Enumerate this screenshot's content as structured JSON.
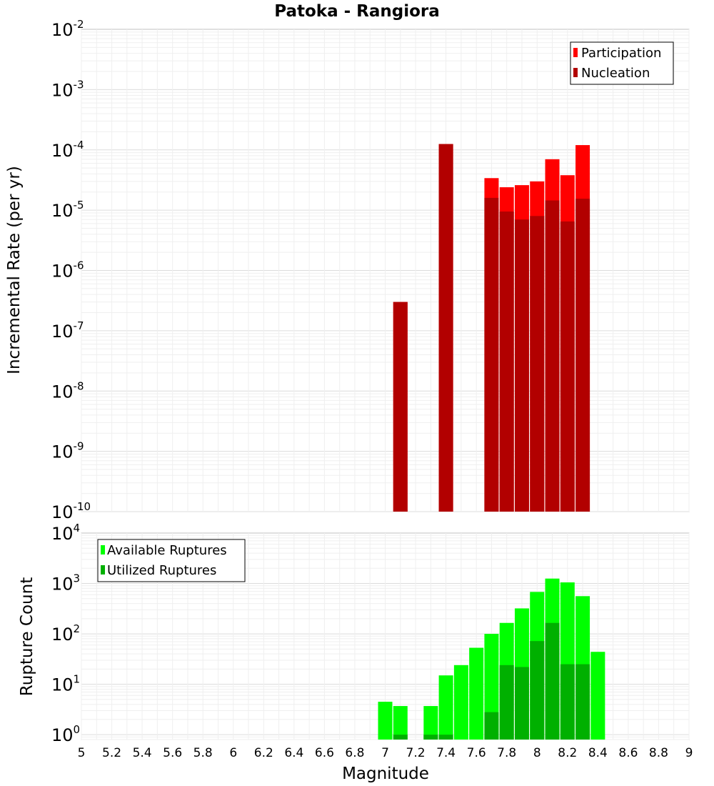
{
  "chart_data": [
    {
      "type": "bar",
      "title": "Patoka - Rangiora",
      "xlabel": "Magnitude",
      "ylabel": "Incremental Rate (per yr)",
      "yscale": "log",
      "ylim": [
        1e-10,
        0.01
      ],
      "xlim": [
        5,
        9
      ],
      "grid": true,
      "legend_position": "top-right",
      "y_ticks": [
        {
          "base": "10",
          "exp": "-10"
        },
        {
          "base": "10",
          "exp": "-9"
        },
        {
          "base": "10",
          "exp": "-8"
        },
        {
          "base": "10",
          "exp": "-7"
        },
        {
          "base": "10",
          "exp": "-6"
        },
        {
          "base": "10",
          "exp": "-5"
        },
        {
          "base": "10",
          "exp": "-4"
        },
        {
          "base": "10",
          "exp": "-3"
        },
        {
          "base": "10",
          "exp": "-2"
        }
      ],
      "x": [
        7.1,
        7.4,
        7.7,
        7.8,
        7.9,
        8.0,
        8.1,
        8.2,
        8.3
      ],
      "series": [
        {
          "name": "Participation",
          "color": "#ff0000",
          "values": [
            3e-07,
            0.000125,
            3.4e-05,
            2.4e-05,
            2.6e-05,
            3e-05,
            7e-05,
            3.8e-05,
            0.00012
          ]
        },
        {
          "name": "Nucleation",
          "color": "#b20000",
          "values": [
            3e-07,
            0.000125,
            1.6e-05,
            9.5e-06,
            7e-06,
            8e-06,
            1.45e-05,
            6.5e-06,
            1.55e-05
          ]
        }
      ]
    },
    {
      "type": "bar",
      "xlabel": "Magnitude",
      "ylabel": "Rupture Count",
      "yscale": "log",
      "ylim": [
        0.8,
        10000
      ],
      "xlim": [
        5,
        9
      ],
      "grid": true,
      "legend_position": "top-left",
      "y_ticks": [
        {
          "base": "10",
          "exp": "0"
        },
        {
          "base": "10",
          "exp": "1"
        },
        {
          "base": "10",
          "exp": "2"
        },
        {
          "base": "10",
          "exp": "3"
        },
        {
          "base": "10",
          "exp": "4"
        }
      ],
      "x_ticks": [
        "5",
        "5.2",
        "5.4",
        "5.6",
        "5.8",
        "6",
        "6.2",
        "6.4",
        "6.6",
        "6.8",
        "7",
        "7.2",
        "7.4",
        "7.6",
        "7.8",
        "8",
        "8.2",
        "8.4",
        "8.6",
        "8.8",
        "9"
      ],
      "x": [
        7.0,
        7.1,
        7.3,
        7.4,
        7.5,
        7.6,
        7.7,
        7.8,
        7.9,
        8.0,
        8.1,
        8.2,
        8.3,
        8.4
      ],
      "series": [
        {
          "name": "Available Ruptures",
          "color": "#00ff00",
          "values": [
            4.5,
            3.7,
            3.7,
            15,
            24,
            53,
            100,
            165,
            320,
            680,
            1250,
            1050,
            560,
            44
          ]
        },
        {
          "name": "Utilized Ruptures",
          "color": "#00b000",
          "values": [
            null,
            1,
            1,
            1,
            null,
            null,
            2.8,
            24,
            22,
            72,
            165,
            25,
            25,
            null
          ]
        }
      ]
    }
  ]
}
